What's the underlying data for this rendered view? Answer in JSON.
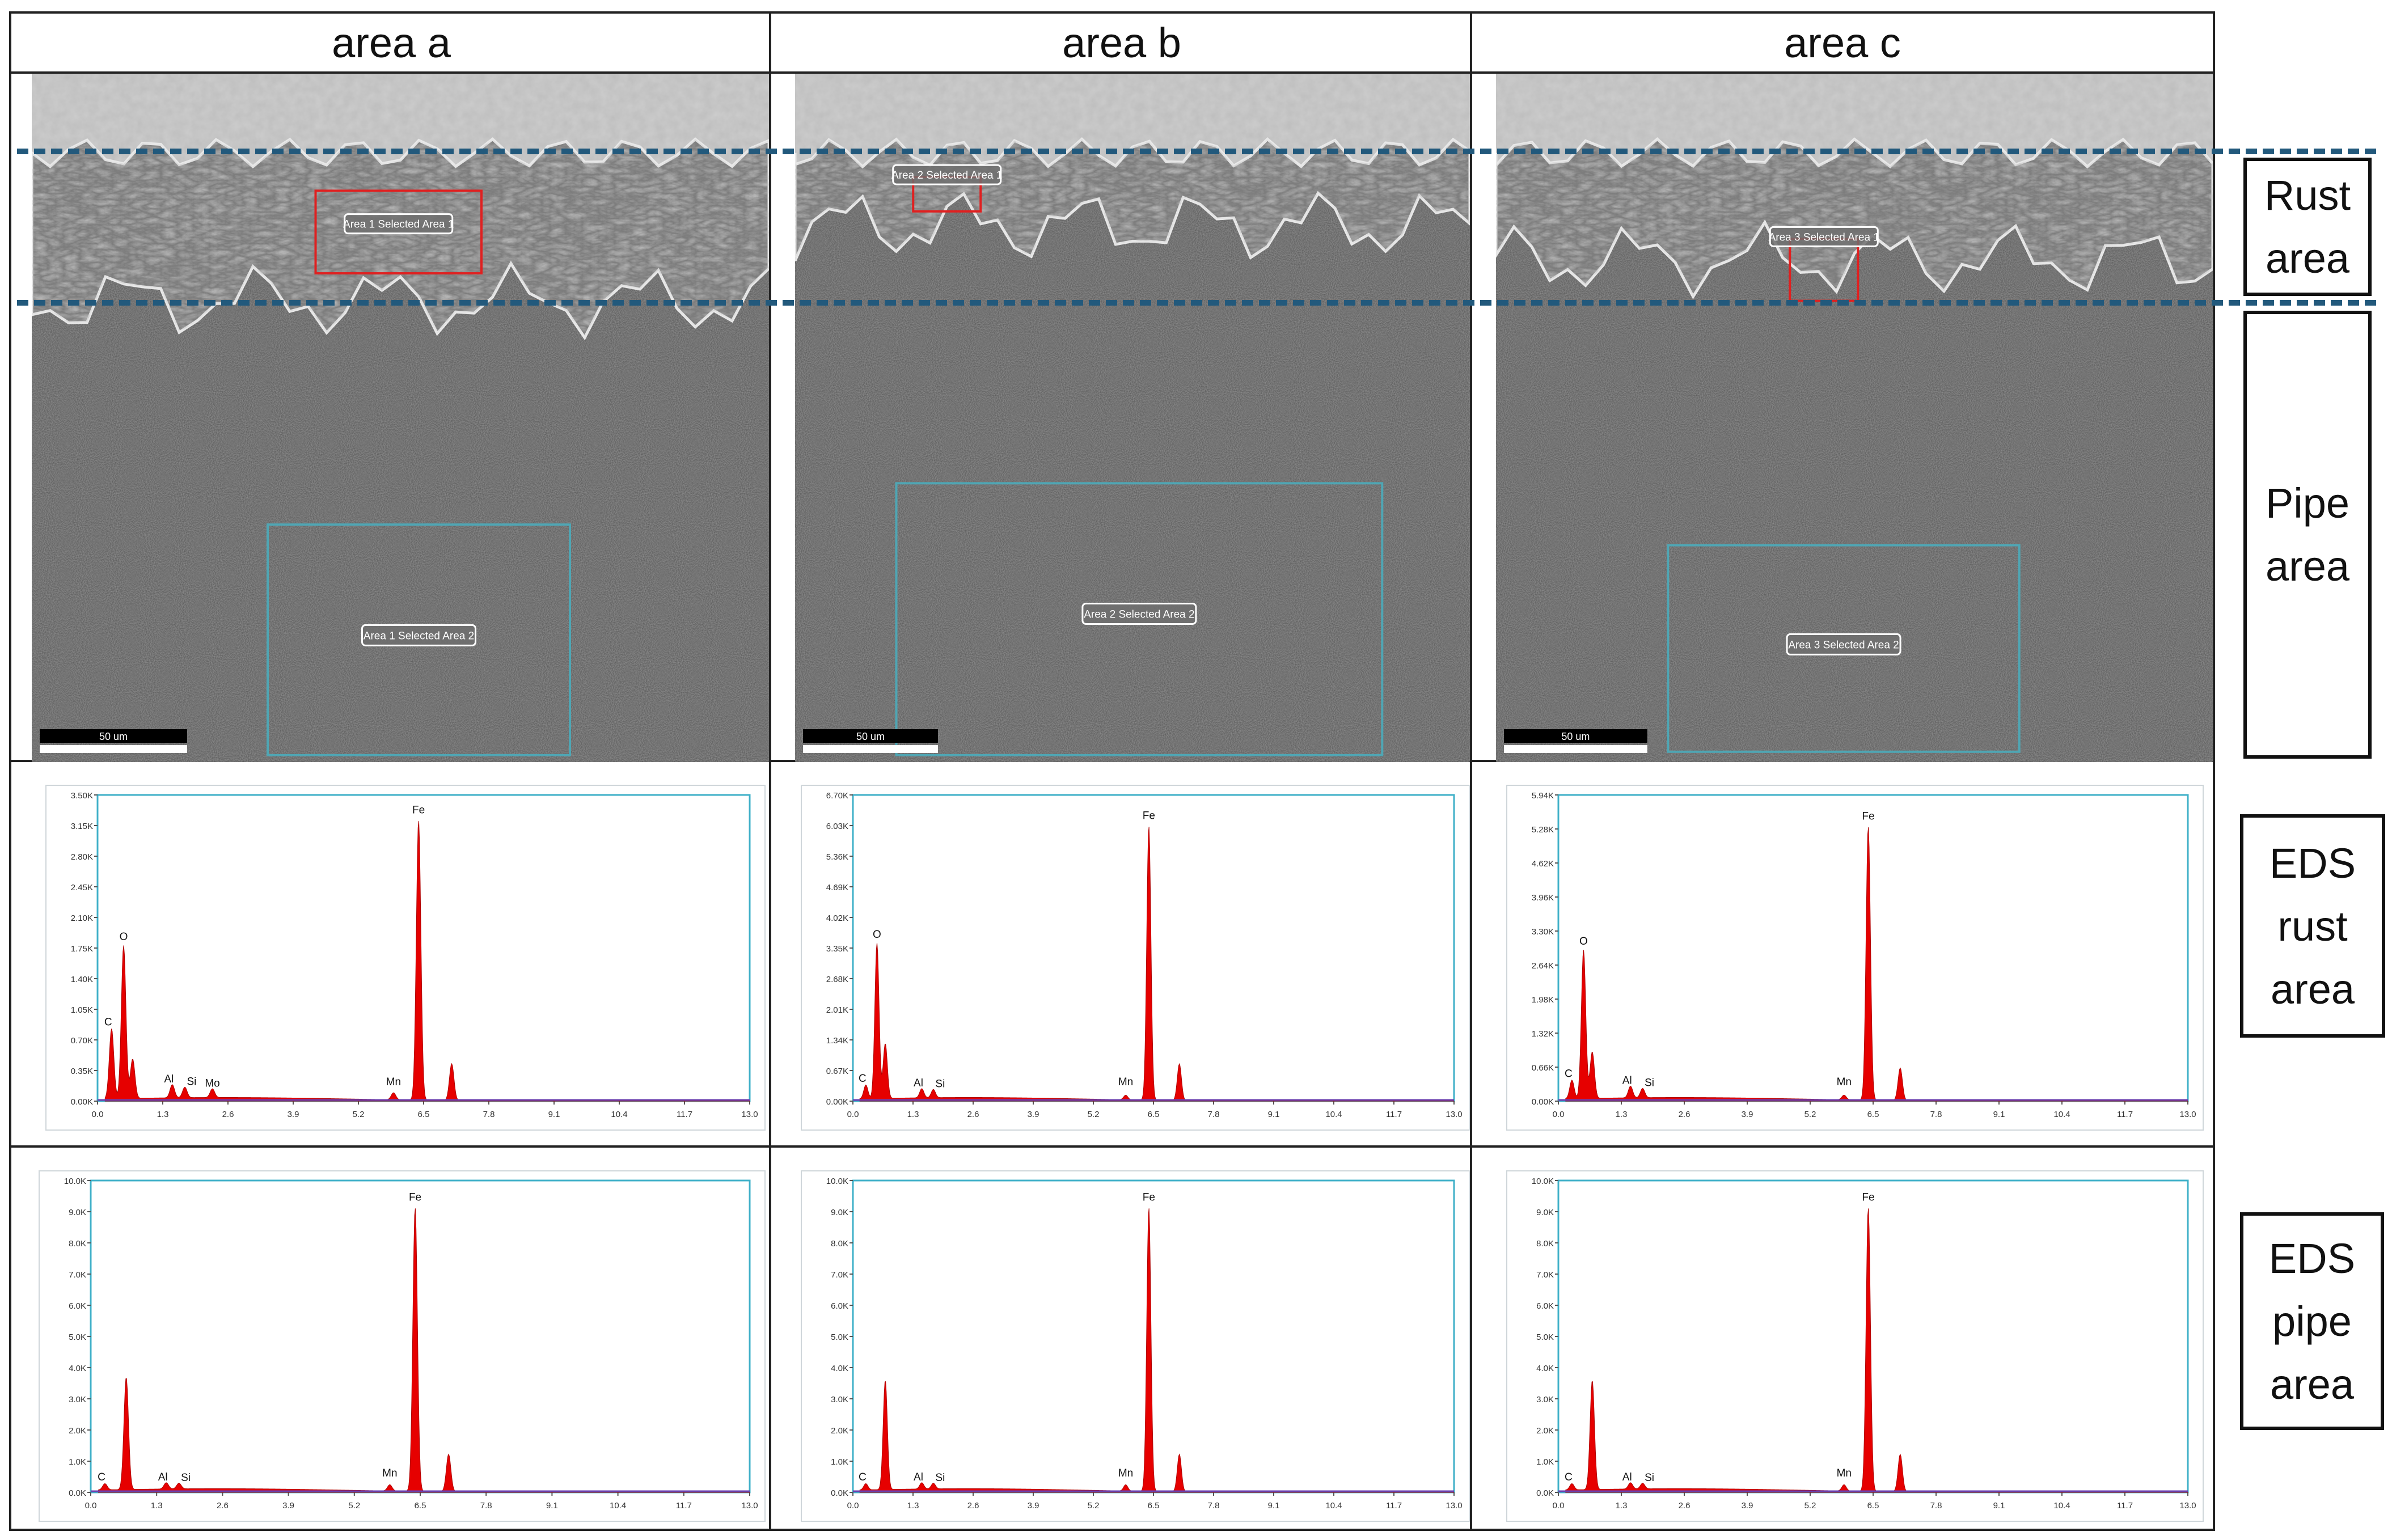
{
  "columns": [
    "area a",
    "area b",
    "area c"
  ],
  "side_labels": {
    "rust": "Rust\narea",
    "pipe": "Pipe\narea",
    "eds_rust": "EDS\nrust\narea",
    "eds_pipe": "EDS\npipe\narea"
  },
  "colors": {
    "dash_line": "#22597c",
    "spectrum_fill": "#e60000",
    "rust_box": "#e02020",
    "pipe_box": "#4fa6b4",
    "plot_frame": "#3fb0c8"
  },
  "sem_images": [
    {
      "area": "a",
      "rust_label": "Area 1 Selected Area 1",
      "pipe_label": "Area 1 Selected Area 2",
      "scale_label": "50 um"
    },
    {
      "area": "b",
      "rust_label": "Area 2 Selected Area 1",
      "pipe_label": "Area 2 Selected Area 2",
      "scale_label": "50 um"
    },
    {
      "area": "c",
      "rust_label": "Area 3 Selected Area 1",
      "pipe_label": "Area 3 Selected Area 2",
      "scale_label": "50 um"
    }
  ],
  "chart_data": [
    {
      "type": "area",
      "title": "",
      "panel": "EDS rust area - area a",
      "x_ticks": [
        "0.0",
        "1.3",
        "2.6",
        "3.9",
        "5.2",
        "6.5",
        "7.8",
        "9.1",
        "10.4",
        "11.7",
        "13.0"
      ],
      "y_ticks": [
        "0.00K",
        "0.35K",
        "0.70K",
        "1.05K",
        "1.40K",
        "1.75K",
        "2.10K",
        "2.45K",
        "2.80K",
        "3.15K",
        "3.50K"
      ],
      "ylim": [
        0,
        3.5
      ],
      "peaks": [
        {
          "element": "C",
          "x": 0.28,
          "y": 0.8
        },
        {
          "element": "O",
          "x": 0.52,
          "y": 1.75
        },
        {
          "element": "",
          "x": 0.7,
          "y": 0.45
        },
        {
          "element": "Al",
          "x": 1.49,
          "y": 0.15
        },
        {
          "element": "Si",
          "x": 1.74,
          "y": 0.12
        },
        {
          "element": "Mo",
          "x": 2.29,
          "y": 0.1
        },
        {
          "element": "Mn",
          "x": 5.9,
          "y": 0.08
        },
        {
          "element": "Fe",
          "x": 6.4,
          "y": 3.2
        },
        {
          "element": "",
          "x": 7.06,
          "y": 0.42
        }
      ]
    },
    {
      "type": "area",
      "title": "",
      "panel": "EDS rust area - area b",
      "x_ticks": [
        "0.0",
        "1.3",
        "2.6",
        "3.9",
        "5.2",
        "6.5",
        "7.8",
        "9.1",
        "10.4",
        "11.7",
        "13.0"
      ],
      "y_ticks": [
        "0.00K",
        "0.67K",
        "1.34K",
        "2.01K",
        "2.68K",
        "3.35K",
        "4.02K",
        "4.69K",
        "5.36K",
        "6.03K",
        "6.70K"
      ],
      "ylim": [
        0,
        6.7
      ],
      "peaks": [
        {
          "element": "C",
          "x": 0.28,
          "y": 0.3
        },
        {
          "element": "O",
          "x": 0.52,
          "y": 3.4
        },
        {
          "element": "",
          "x": 0.7,
          "y": 1.2
        },
        {
          "element": "Al",
          "x": 1.49,
          "y": 0.2
        },
        {
          "element": "Si",
          "x": 1.74,
          "y": 0.18
        },
        {
          "element": "Mn",
          "x": 5.9,
          "y": 0.1
        },
        {
          "element": "Fe",
          "x": 6.4,
          "y": 6.0
        },
        {
          "element": "",
          "x": 7.06,
          "y": 0.8
        }
      ]
    },
    {
      "type": "area",
      "title": "",
      "panel": "EDS rust area - area c",
      "x_ticks": [
        "0.0",
        "1.3",
        "2.6",
        "3.9",
        "5.2",
        "6.5",
        "7.8",
        "9.1",
        "10.4",
        "11.7",
        "13.0"
      ],
      "y_ticks": [
        "0.00K",
        "0.66K",
        "1.32K",
        "1.98K",
        "2.64K",
        "3.30K",
        "3.96K",
        "4.62K",
        "5.28K",
        "5.94K"
      ],
      "ylim": [
        0,
        6.6
      ],
      "peaks": [
        {
          "element": "C",
          "x": 0.28,
          "y": 0.4
        },
        {
          "element": "O",
          "x": 0.52,
          "y": 3.2
        },
        {
          "element": "",
          "x": 0.7,
          "y": 1.0
        },
        {
          "element": "Al",
          "x": 1.49,
          "y": 0.25
        },
        {
          "element": "Si",
          "x": 1.74,
          "y": 0.2
        },
        {
          "element": "Mn",
          "x": 5.9,
          "y": 0.1
        },
        {
          "element": "Fe",
          "x": 6.4,
          "y": 5.9
        },
        {
          "element": "",
          "x": 7.06,
          "y": 0.7
        }
      ]
    },
    {
      "type": "area",
      "title": "",
      "panel": "EDS pipe area - area a",
      "x_ticks": [
        "0.0",
        "1.3",
        "2.6",
        "3.9",
        "5.2",
        "6.5",
        "7.8",
        "9.1",
        "10.4",
        "11.7",
        "13.0"
      ],
      "y_ticks": [
        "0.0K",
        "1.0K",
        "2.0K",
        "3.0K",
        "4.0K",
        "5.0K",
        "6.0K",
        "7.0K",
        "8.0K",
        "9.0K",
        "10.0K"
      ],
      "ylim": [
        0,
        10
      ],
      "peaks": [
        {
          "element": "C",
          "x": 0.28,
          "y": 0.2
        },
        {
          "element": "",
          "x": 0.7,
          "y": 3.6
        },
        {
          "element": "Al",
          "x": 1.49,
          "y": 0.2
        },
        {
          "element": "Si",
          "x": 1.74,
          "y": 0.18
        },
        {
          "element": "Mn",
          "x": 5.9,
          "y": 0.2
        },
        {
          "element": "Fe",
          "x": 6.4,
          "y": 9.1
        },
        {
          "element": "",
          "x": 7.06,
          "y": 1.2
        }
      ]
    },
    {
      "type": "area",
      "title": "",
      "panel": "EDS pipe area - area b",
      "x_ticks": [
        "0.0",
        "1.3",
        "2.6",
        "3.9",
        "5.2",
        "6.5",
        "7.8",
        "9.1",
        "10.4",
        "11.7",
        "13.0"
      ],
      "y_ticks": [
        "0.0K",
        "1.0K",
        "2.0K",
        "3.0K",
        "4.0K",
        "5.0K",
        "6.0K",
        "7.0K",
        "8.0K",
        "9.0K",
        "10.0K"
      ],
      "ylim": [
        0,
        10
      ],
      "peaks": [
        {
          "element": "C",
          "x": 0.28,
          "y": 0.2
        },
        {
          "element": "",
          "x": 0.7,
          "y": 3.5
        },
        {
          "element": "Al",
          "x": 1.49,
          "y": 0.2
        },
        {
          "element": "Si",
          "x": 1.74,
          "y": 0.18
        },
        {
          "element": "Mn",
          "x": 5.9,
          "y": 0.2
        },
        {
          "element": "Fe",
          "x": 6.4,
          "y": 9.1
        },
        {
          "element": "",
          "x": 7.06,
          "y": 1.2
        }
      ]
    },
    {
      "type": "area",
      "title": "",
      "panel": "EDS pipe area - area c",
      "x_ticks": [
        "0.0",
        "1.3",
        "2.6",
        "3.9",
        "5.2",
        "6.5",
        "7.8",
        "9.1",
        "10.4",
        "11.7",
        "13.0"
      ],
      "y_ticks": [
        "0.0K",
        "1.0K",
        "2.0K",
        "3.0K",
        "4.0K",
        "5.0K",
        "6.0K",
        "7.0K",
        "8.0K",
        "9.0K",
        "10.0K"
      ],
      "ylim": [
        0,
        10
      ],
      "peaks": [
        {
          "element": "C",
          "x": 0.28,
          "y": 0.2
        },
        {
          "element": "",
          "x": 0.7,
          "y": 3.5
        },
        {
          "element": "Al",
          "x": 1.49,
          "y": 0.2
        },
        {
          "element": "Si",
          "x": 1.74,
          "y": 0.18
        },
        {
          "element": "Mn",
          "x": 5.9,
          "y": 0.2
        },
        {
          "element": "Fe",
          "x": 6.4,
          "y": 9.1
        },
        {
          "element": "",
          "x": 7.06,
          "y": 1.2
        }
      ]
    }
  ]
}
